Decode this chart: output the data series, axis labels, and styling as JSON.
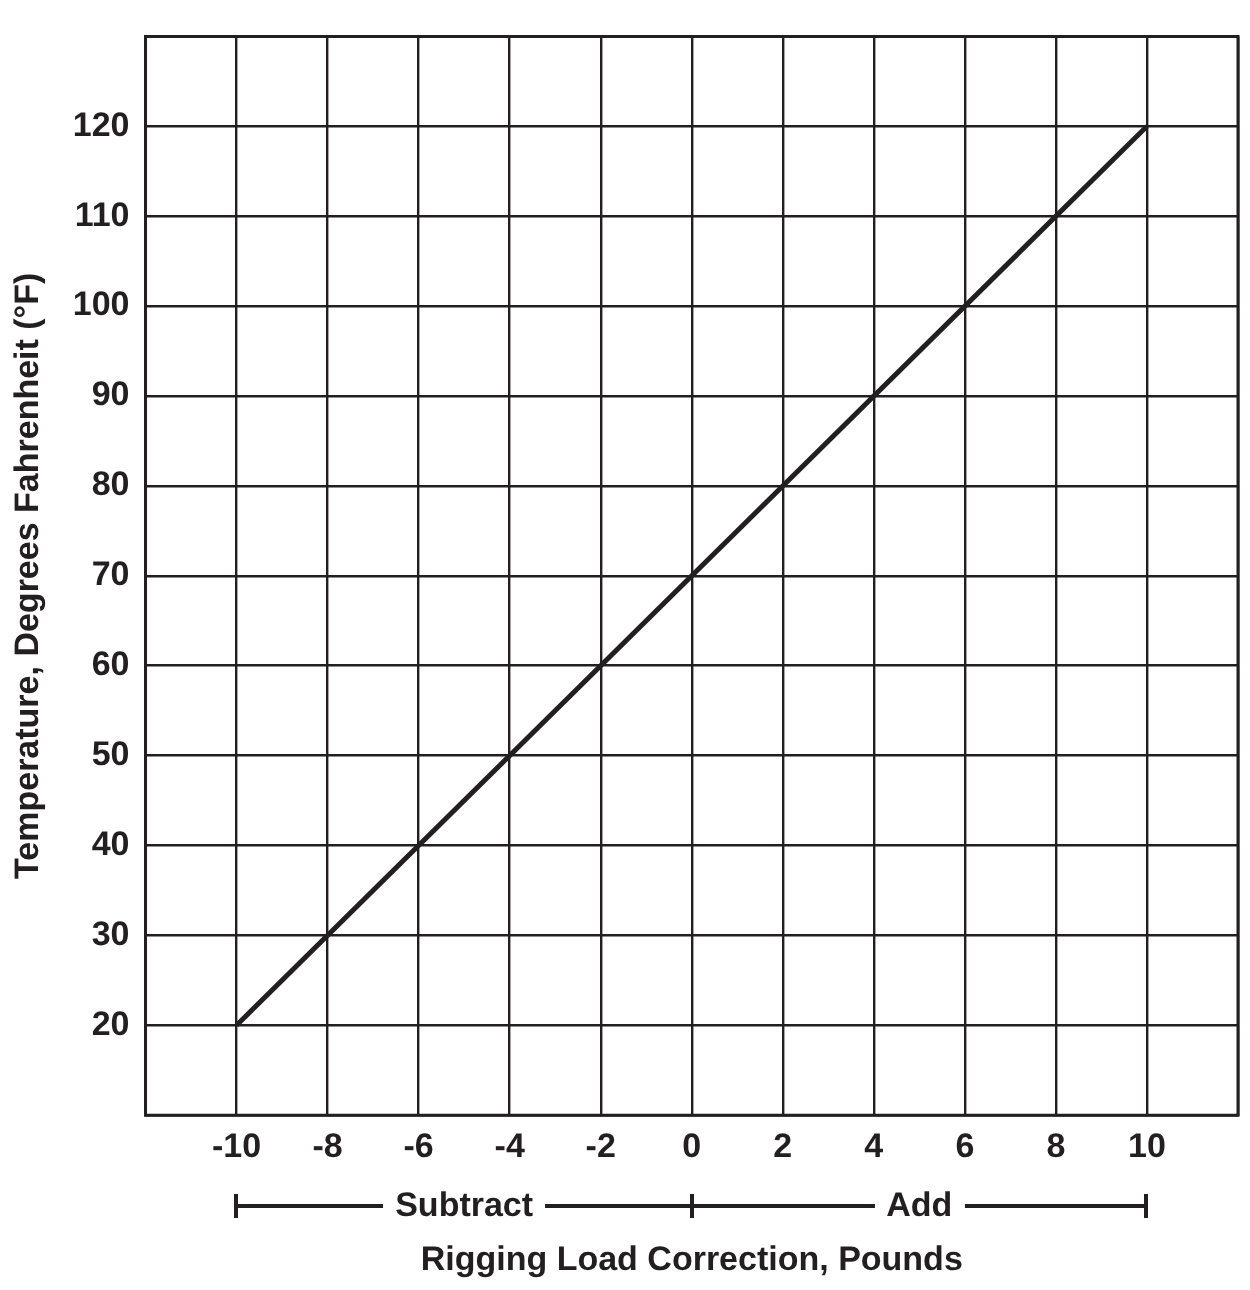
{
  "chart_data": {
    "type": "line",
    "xlabel": "Rigging Load Correction, Pounds",
    "ylabel": "Temperature, Degrees Fahrenheit (°F)",
    "annotations": [
      "Subtract",
      "Add"
    ],
    "series": [
      {
        "color": "#231f20",
        "x": [
          -10,
          10
        ],
        "values": [
          20,
          120
        ]
      }
    ],
    "xlim": [
      -12,
      12
    ],
    "ylim": [
      10,
      130
    ],
    "xticks": [
      {
        "value": -12,
        "label": null
      },
      -10,
      -8,
      -6,
      -4,
      -2,
      0,
      2,
      4,
      6,
      8,
      10,
      {
        "value": 12,
        "label": null
      }
    ],
    "yticks": [
      {
        "value": 10,
        "label": null
      },
      20,
      30,
      40,
      50,
      60,
      70,
      80,
      90,
      100,
      110,
      120,
      {
        "value": 130,
        "label": null
      }
    ],
    "grid": true,
    "legend": false,
    "marker": "none",
    "line_style": "solid"
  }
}
